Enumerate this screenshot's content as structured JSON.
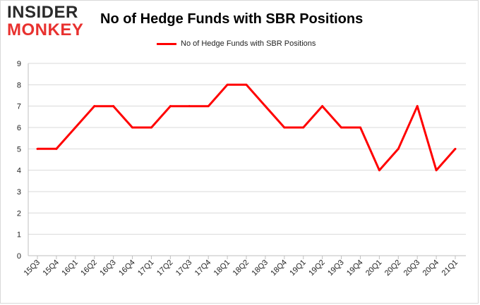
{
  "logo": {
    "line1": "INSIDER",
    "line2": "MONKEY"
  },
  "colors": {
    "series": "#ff0000",
    "grid": "#d9d9d9",
    "axis": "#bfbfbf",
    "brand_red": "#e8312f"
  },
  "chart_data": {
    "type": "line",
    "title": "No of Hedge Funds with SBR Positions",
    "xlabel": "",
    "ylabel": "",
    "ylim": [
      0,
      9
    ],
    "yticks": [
      0,
      1,
      2,
      3,
      4,
      5,
      6,
      7,
      8,
      9
    ],
    "grid": true,
    "legend_position": "top",
    "categories": [
      "15Q3",
      "15Q4",
      "16Q1",
      "16Q2",
      "16Q3",
      "16Q4",
      "17Q1",
      "17Q2",
      "17Q3",
      "17Q4",
      "18Q1",
      "18Q2",
      "18Q3",
      "18Q4",
      "19Q1",
      "19Q2",
      "19Q3",
      "19Q4",
      "20Q1",
      "20Q2",
      "20Q3",
      "20Q4",
      "21Q1"
    ],
    "series": [
      {
        "name": "No of Hedge Funds with SBR Positions",
        "values": [
          5,
          5,
          6,
          7,
          7,
          6,
          6,
          7,
          7,
          7,
          8,
          8,
          7,
          6,
          6,
          7,
          6,
          6,
          4,
          5,
          7,
          4,
          5
        ]
      }
    ]
  }
}
